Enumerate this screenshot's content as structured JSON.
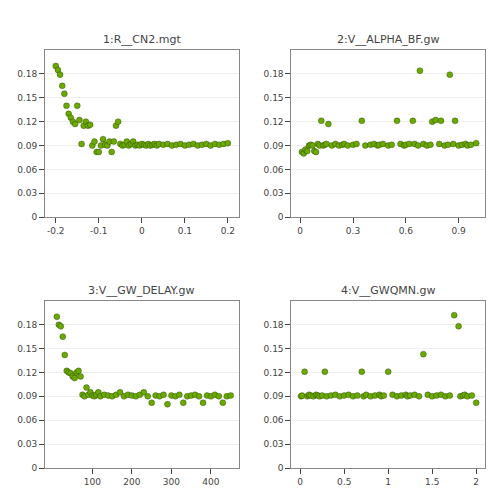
{
  "chart_data": [
    {
      "type": "scatter",
      "title": "1:R__CN2.mgt",
      "color": "#6aaa00",
      "grid": true,
      "xlim": [
        -0.225,
        0.225
      ],
      "xticks": [
        -0.2,
        -0.1,
        0,
        0.1,
        0.2
      ],
      "ylim": [
        0,
        0.21
      ],
      "yticks": [
        0,
        0.03,
        0.06,
        0.09,
        0.12,
        0.15,
        0.18
      ],
      "x": [
        -0.2,
        -0.195,
        -0.19,
        -0.185,
        -0.18,
        -0.175,
        -0.17,
        -0.165,
        -0.16,
        -0.155,
        -0.15,
        -0.145,
        -0.14,
        -0.135,
        -0.13,
        -0.125,
        -0.12,
        -0.115,
        -0.11,
        -0.105,
        -0.1,
        -0.095,
        -0.09,
        -0.085,
        -0.08,
        -0.075,
        -0.07,
        -0.065,
        -0.06,
        -0.055,
        -0.05,
        -0.045,
        -0.04,
        -0.035,
        -0.03,
        -0.025,
        -0.02,
        -0.015,
        -0.01,
        -0.005,
        0,
        0.005,
        0.01,
        0.015,
        0.02,
        0.025,
        0.03,
        0.035,
        0.04,
        0.05,
        0.06,
        0.07,
        0.08,
        0.09,
        0.1,
        0.11,
        0.12,
        0.13,
        0.14,
        0.15,
        0.16,
        0.17,
        0.18,
        0.19,
        0.2
      ],
      "values": [
        0.19,
        0.185,
        0.179,
        0.165,
        0.155,
        0.14,
        0.13,
        0.125,
        0.12,
        0.117,
        0.14,
        0.122,
        0.092,
        0.115,
        0.12,
        0.115,
        0.116,
        0.09,
        0.095,
        0.082,
        0.082,
        0.09,
        0.098,
        0.091,
        0.09,
        0.095,
        0.082,
        0.095,
        0.115,
        0.12,
        0.092,
        0.09,
        0.091,
        0.095,
        0.09,
        0.092,
        0.095,
        0.09,
        0.091,
        0.09,
        0.092,
        0.091,
        0.09,
        0.092,
        0.09,
        0.091,
        0.092,
        0.09,
        0.092,
        0.091,
        0.092,
        0.09,
        0.091,
        0.092,
        0.09,
        0.091,
        0.092,
        0.09,
        0.091,
        0.092,
        0.09,
        0.092,
        0.091,
        0.092,
        0.093
      ]
    },
    {
      "type": "scatter",
      "title": "2:V__ALPHA_BF.gw",
      "color": "#6aaa00",
      "grid": true,
      "xlim": [
        -0.05,
        1.05
      ],
      "xticks": [
        0,
        0.3,
        0.6,
        0.9
      ],
      "ylim": [
        0,
        0.21
      ],
      "yticks": [
        0,
        0.03,
        0.06,
        0.09,
        0.12,
        0.15,
        0.18
      ],
      "x": [
        0.01,
        0.02,
        0.03,
        0.04,
        0.05,
        0.06,
        0.07,
        0.08,
        0.09,
        0.1,
        0.11,
        0.12,
        0.13,
        0.14,
        0.15,
        0.16,
        0.18,
        0.2,
        0.22,
        0.24,
        0.25,
        0.27,
        0.3,
        0.32,
        0.35,
        0.37,
        0.4,
        0.42,
        0.44,
        0.45,
        0.47,
        0.5,
        0.52,
        0.55,
        0.57,
        0.59,
        0.6,
        0.62,
        0.64,
        0.65,
        0.67,
        0.68,
        0.7,
        0.72,
        0.74,
        0.75,
        0.77,
        0.79,
        0.8,
        0.82,
        0.84,
        0.85,
        0.87,
        0.88,
        0.9,
        0.92,
        0.94,
        0.95,
        0.97,
        1.0
      ],
      "values": [
        0.082,
        0.08,
        0.085,
        0.083,
        0.09,
        0.091,
        0.09,
        0.083,
        0.082,
        0.092,
        0.09,
        0.121,
        0.09,
        0.091,
        0.092,
        0.117,
        0.09,
        0.092,
        0.09,
        0.091,
        0.092,
        0.09,
        0.091,
        0.092,
        0.121,
        0.09,
        0.091,
        0.092,
        0.09,
        0.091,
        0.092,
        0.09,
        0.091,
        0.121,
        0.092,
        0.09,
        0.091,
        0.092,
        0.121,
        0.092,
        0.09,
        0.184,
        0.092,
        0.09,
        0.091,
        0.12,
        0.122,
        0.092,
        0.121,
        0.09,
        0.091,
        0.179,
        0.092,
        0.121,
        0.09,
        0.091,
        0.092,
        0.09,
        0.091,
        0.093
      ]
    },
    {
      "type": "scatter",
      "title": "3:V__GW_DELAY.gw",
      "color": "#6aaa00",
      "grid": true,
      "xlim": [
        -20,
        470
      ],
      "xticks": [
        100,
        200,
        300,
        400
      ],
      "ylim": [
        0,
        0.21
      ],
      "yticks": [
        0,
        0.03,
        0.06,
        0.09,
        0.12,
        0.15,
        0.18
      ],
      "x": [
        10,
        15,
        20,
        25,
        30,
        35,
        40,
        45,
        50,
        55,
        60,
        65,
        70,
        75,
        80,
        85,
        90,
        95,
        100,
        105,
        110,
        115,
        120,
        130,
        140,
        150,
        160,
        170,
        180,
        190,
        200,
        210,
        220,
        230,
        240,
        250,
        260,
        270,
        280,
        290,
        300,
        310,
        320,
        330,
        340,
        350,
        360,
        370,
        380,
        390,
        400,
        410,
        420,
        430,
        440,
        450
      ],
      "values": [
        0.19,
        0.18,
        0.178,
        0.165,
        0.142,
        0.122,
        0.12,
        0.119,
        0.115,
        0.113,
        0.12,
        0.122,
        0.115,
        0.092,
        0.09,
        0.101,
        0.092,
        0.095,
        0.091,
        0.09,
        0.092,
        0.095,
        0.09,
        0.092,
        0.091,
        0.09,
        0.092,
        0.095,
        0.09,
        0.092,
        0.091,
        0.09,
        0.092,
        0.095,
        0.09,
        0.082,
        0.091,
        0.09,
        0.092,
        0.08,
        0.091,
        0.09,
        0.092,
        0.082,
        0.09,
        0.091,
        0.092,
        0.09,
        0.082,
        0.091,
        0.09,
        0.092,
        0.09,
        0.082,
        0.09,
        0.091
      ]
    },
    {
      "type": "scatter",
      "title": "4:V__GWQMN.gw",
      "color": "#6aaa00",
      "grid": true,
      "xlim": [
        -0.1,
        2.1
      ],
      "xticks": [
        0,
        0.5,
        1,
        1.5,
        2
      ],
      "ylim": [
        0,
        0.21
      ],
      "yticks": [
        0,
        0.03,
        0.06,
        0.09,
        0.12,
        0.15,
        0.18
      ],
      "x": [
        0.01,
        0.02,
        0.05,
        0.08,
        0.1,
        0.12,
        0.15,
        0.18,
        0.2,
        0.22,
        0.25,
        0.28,
        0.3,
        0.35,
        0.4,
        0.45,
        0.5,
        0.55,
        0.6,
        0.65,
        0.7,
        0.72,
        0.75,
        0.8,
        0.85,
        0.9,
        0.92,
        0.95,
        1.0,
        1.05,
        1.1,
        1.15,
        1.2,
        1.22,
        1.25,
        1.3,
        1.35,
        1.4,
        1.45,
        1.5,
        1.55,
        1.6,
        1.65,
        1.7,
        1.75,
        1.8,
        1.82,
        1.85,
        1.87,
        1.9,
        1.95,
        2.0
      ],
      "values": [
        0.09,
        0.091,
        0.121,
        0.09,
        0.092,
        0.091,
        0.09,
        0.092,
        0.091,
        0.09,
        0.091,
        0.121,
        0.09,
        0.091,
        0.092,
        0.09,
        0.091,
        0.092,
        0.09,
        0.091,
        0.121,
        0.09,
        0.092,
        0.09,
        0.091,
        0.092,
        0.09,
        0.091,
        0.121,
        0.092,
        0.09,
        0.091,
        0.092,
        0.09,
        0.091,
        0.092,
        0.09,
        0.143,
        0.092,
        0.09,
        0.091,
        0.092,
        0.09,
        0.091,
        0.192,
        0.178,
        0.09,
        0.091,
        0.092,
        0.09,
        0.091,
        0.082
      ]
    }
  ]
}
